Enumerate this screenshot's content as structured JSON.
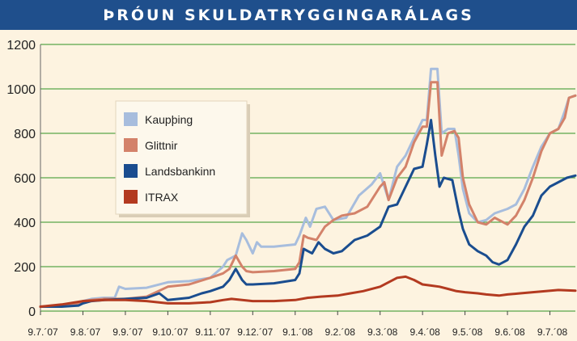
{
  "title": "ÞRÓUN SKULDATRYGGINGARÁLAGS",
  "chart_data": {
    "type": "line",
    "title": "ÞRÓUN SKULDATRYGGINGARÁLAGS",
    "xlabel": "",
    "ylabel": "",
    "ylim": [
      0,
      1200
    ],
    "yticks": [
      0,
      200,
      400,
      600,
      800,
      1000,
      1200
    ],
    "xticks": [
      "9.7.´07",
      "9.8.´07",
      "9.9.´07",
      "9.10.´07",
      "9.11.´07",
      "9.12.´07",
      "9.1.´08",
      "9.2.´08",
      "9.3.´08",
      "9.4.´08",
      "9.5.´08",
      "9.6.´08",
      "9.7.´08"
    ],
    "x_unit": "months since 9.7.´07",
    "grid": true,
    "legend_position": "upper-left",
    "series": [
      {
        "name": "Kaupþing",
        "color": "#a7bddd",
        "points": [
          [
            0,
            20
          ],
          [
            0.5,
            25
          ],
          [
            0.9,
            35
          ],
          [
            1.0,
            45
          ],
          [
            1.2,
            55
          ],
          [
            1.5,
            60
          ],
          [
            1.75,
            60
          ],
          [
            1.85,
            110
          ],
          [
            2.0,
            100
          ],
          [
            2.5,
            105
          ],
          [
            3.0,
            130
          ],
          [
            3.5,
            135
          ],
          [
            4.0,
            150
          ],
          [
            4.3,
            200
          ],
          [
            4.4,
            230
          ],
          [
            4.6,
            250
          ],
          [
            4.75,
            350
          ],
          [
            4.85,
            320
          ],
          [
            5.0,
            260
          ],
          [
            5.1,
            310
          ],
          [
            5.2,
            290
          ],
          [
            5.5,
            290
          ],
          [
            6.0,
            300
          ],
          [
            6.1,
            340
          ],
          [
            6.25,
            420
          ],
          [
            6.35,
            380
          ],
          [
            6.5,
            460
          ],
          [
            6.7,
            470
          ],
          [
            6.9,
            410
          ],
          [
            7.2,
            420
          ],
          [
            7.5,
            520
          ],
          [
            7.8,
            570
          ],
          [
            8.0,
            620
          ],
          [
            8.2,
            500
          ],
          [
            8.4,
            650
          ],
          [
            8.6,
            700
          ],
          [
            8.8,
            780
          ],
          [
            9.0,
            860
          ],
          [
            9.1,
            860
          ],
          [
            9.2,
            1090
          ],
          [
            9.35,
            1090
          ],
          [
            9.45,
            800
          ],
          [
            9.6,
            820
          ],
          [
            9.75,
            820
          ],
          [
            9.85,
            700
          ],
          [
            9.95,
            550
          ],
          [
            10.1,
            440
          ],
          [
            10.3,
            400
          ],
          [
            10.5,
            410
          ],
          [
            10.7,
            440
          ],
          [
            11.0,
            460
          ],
          [
            11.2,
            480
          ],
          [
            11.4,
            550
          ],
          [
            11.6,
            650
          ],
          [
            11.8,
            740
          ],
          [
            12.0,
            800
          ],
          [
            12.2,
            820
          ],
          [
            12.35,
            900
          ],
          [
            12.45,
            960
          ],
          [
            12.6,
            970
          ]
        ]
      },
      {
        "name": "Glittnir",
        "color": "#d3826a",
        "points": [
          [
            0,
            20
          ],
          [
            0.5,
            25
          ],
          [
            0.9,
            35
          ],
          [
            1.0,
            45
          ],
          [
            1.2,
            50
          ],
          [
            1.5,
            55
          ],
          [
            2.0,
            55
          ],
          [
            2.5,
            65
          ],
          [
            3.0,
            110
          ],
          [
            3.5,
            120
          ],
          [
            4.0,
            150
          ],
          [
            4.3,
            170
          ],
          [
            4.45,
            190
          ],
          [
            4.6,
            250
          ],
          [
            4.75,
            200
          ],
          [
            4.85,
            180
          ],
          [
            5.0,
            175
          ],
          [
            5.5,
            180
          ],
          [
            6.0,
            190
          ],
          [
            6.1,
            220
          ],
          [
            6.2,
            340
          ],
          [
            6.3,
            330
          ],
          [
            6.5,
            320
          ],
          [
            6.7,
            380
          ],
          [
            6.9,
            410
          ],
          [
            7.1,
            430
          ],
          [
            7.4,
            440
          ],
          [
            7.7,
            470
          ],
          [
            8.0,
            560
          ],
          [
            8.1,
            580
          ],
          [
            8.2,
            500
          ],
          [
            8.4,
            600
          ],
          [
            8.6,
            650
          ],
          [
            8.8,
            760
          ],
          [
            9.0,
            830
          ],
          [
            9.1,
            830
          ],
          [
            9.2,
            1030
          ],
          [
            9.35,
            1030
          ],
          [
            9.45,
            700
          ],
          [
            9.6,
            800
          ],
          [
            9.75,
            810
          ],
          [
            9.85,
            780
          ],
          [
            9.95,
            600
          ],
          [
            10.1,
            480
          ],
          [
            10.3,
            400
          ],
          [
            10.5,
            390
          ],
          [
            10.7,
            420
          ],
          [
            11.0,
            390
          ],
          [
            11.2,
            430
          ],
          [
            11.4,
            500
          ],
          [
            11.6,
            600
          ],
          [
            11.8,
            720
          ],
          [
            12.0,
            800
          ],
          [
            12.2,
            820
          ],
          [
            12.35,
            870
          ],
          [
            12.45,
            960
          ],
          [
            12.6,
            970
          ]
        ]
      },
      {
        "name": "Landsbankinn",
        "color": "#1a4d8f",
        "points": [
          [
            0,
            20
          ],
          [
            0.5,
            20
          ],
          [
            0.9,
            25
          ],
          [
            1.0,
            35
          ],
          [
            1.2,
            45
          ],
          [
            1.5,
            50
          ],
          [
            2.0,
            55
          ],
          [
            2.5,
            60
          ],
          [
            2.8,
            80
          ],
          [
            3.0,
            50
          ],
          [
            3.5,
            60
          ],
          [
            3.8,
            80
          ],
          [
            4.0,
            90
          ],
          [
            4.3,
            110
          ],
          [
            4.45,
            140
          ],
          [
            4.6,
            190
          ],
          [
            4.75,
            140
          ],
          [
            4.85,
            120
          ],
          [
            5.0,
            120
          ],
          [
            5.5,
            125
          ],
          [
            6.0,
            140
          ],
          [
            6.1,
            170
          ],
          [
            6.2,
            280
          ],
          [
            6.3,
            270
          ],
          [
            6.4,
            260
          ],
          [
            6.55,
            310
          ],
          [
            6.7,
            280
          ],
          [
            6.9,
            260
          ],
          [
            7.1,
            270
          ],
          [
            7.4,
            320
          ],
          [
            7.7,
            340
          ],
          [
            8.0,
            380
          ],
          [
            8.2,
            470
          ],
          [
            8.4,
            480
          ],
          [
            8.6,
            560
          ],
          [
            8.8,
            640
          ],
          [
            9.0,
            650
          ],
          [
            9.1,
            750
          ],
          [
            9.2,
            860
          ],
          [
            9.3,
            700
          ],
          [
            9.4,
            560
          ],
          [
            9.5,
            600
          ],
          [
            9.7,
            590
          ],
          [
            9.85,
            450
          ],
          [
            9.95,
            370
          ],
          [
            10.1,
            300
          ],
          [
            10.3,
            270
          ],
          [
            10.5,
            250
          ],
          [
            10.65,
            220
          ],
          [
            10.8,
            210
          ],
          [
            11.0,
            230
          ],
          [
            11.2,
            300
          ],
          [
            11.4,
            380
          ],
          [
            11.6,
            430
          ],
          [
            11.8,
            520
          ],
          [
            12.0,
            560
          ],
          [
            12.2,
            580
          ],
          [
            12.4,
            600
          ],
          [
            12.6,
            610
          ]
        ]
      },
      {
        "name": "ITRAX",
        "color": "#b33a20",
        "points": [
          [
            0,
            20
          ],
          [
            0.5,
            30
          ],
          [
            1.0,
            45
          ],
          [
            1.5,
            50
          ],
          [
            2.0,
            50
          ],
          [
            2.5,
            45
          ],
          [
            3.0,
            35
          ],
          [
            3.5,
            35
          ],
          [
            4.0,
            40
          ],
          [
            4.3,
            50
          ],
          [
            4.5,
            55
          ],
          [
            5.0,
            45
          ],
          [
            5.5,
            45
          ],
          [
            6.0,
            50
          ],
          [
            6.3,
            60
          ],
          [
            6.6,
            65
          ],
          [
            7.0,
            70
          ],
          [
            7.3,
            80
          ],
          [
            7.6,
            90
          ],
          [
            8.0,
            110
          ],
          [
            8.2,
            130
          ],
          [
            8.4,
            150
          ],
          [
            8.6,
            155
          ],
          [
            8.8,
            140
          ],
          [
            9.0,
            120
          ],
          [
            9.2,
            115
          ],
          [
            9.4,
            110
          ],
          [
            9.6,
            100
          ],
          [
            9.8,
            90
          ],
          [
            10.0,
            85
          ],
          [
            10.3,
            80
          ],
          [
            10.5,
            75
          ],
          [
            10.8,
            70
          ],
          [
            11.0,
            75
          ],
          [
            11.3,
            80
          ],
          [
            11.6,
            85
          ],
          [
            11.9,
            90
          ],
          [
            12.2,
            95
          ],
          [
            12.6,
            92
          ]
        ]
      }
    ]
  }
}
